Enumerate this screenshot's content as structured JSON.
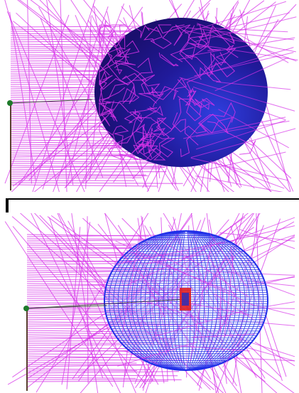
{
  "colors": {
    "background": "#ffffff",
    "tracks": "#d633e8",
    "sphere_solid_dark": "#1a0f6e",
    "sphere_solid_light": "#2f3fe0",
    "sphere_mesh": "#1f2fe8",
    "detector_core": "#e02020",
    "axis_line": "#5a4030",
    "origin_marker": "#1e7a2a",
    "divider": "#000000"
  },
  "panels": [
    {
      "id": "top",
      "render_style": "solid-sphere"
    },
    {
      "id": "bottom",
      "render_style": "wireframe-sphere"
    }
  ]
}
